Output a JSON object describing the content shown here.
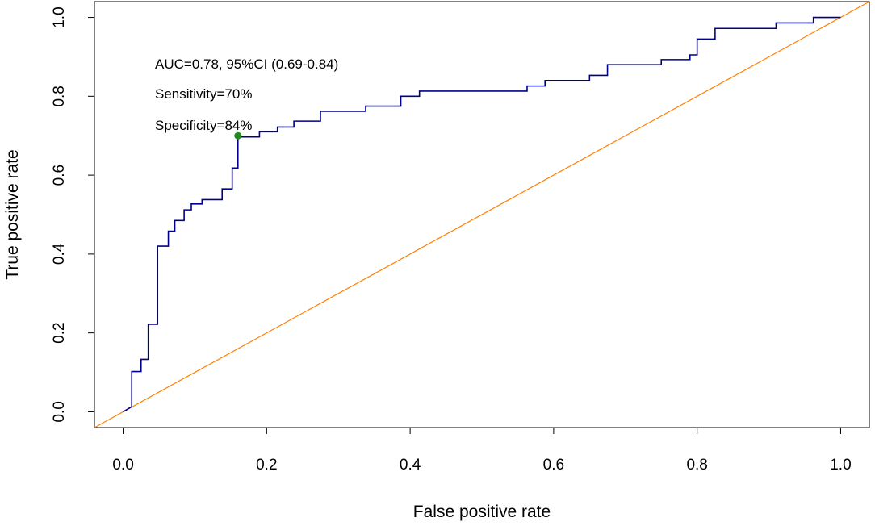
{
  "chart_data": {
    "type": "line",
    "title": "",
    "xlabel": "False positive rate",
    "ylabel": "True positive rate",
    "xlim": [
      -0.04,
      1.04
    ],
    "ylim": [
      -0.04,
      1.04
    ],
    "x_ticks": [
      0.0,
      0.2,
      0.4,
      0.6,
      0.8,
      1.0
    ],
    "x_tick_labels": [
      "0.0",
      "0.2",
      "0.4",
      "0.6",
      "0.8",
      "1.0"
    ],
    "y_ticks": [
      0.0,
      0.2,
      0.4,
      0.6,
      0.8,
      1.0
    ],
    "y_tick_labels": [
      "0.0",
      "0.2",
      "0.4",
      "0.6",
      "0.8",
      "1.0"
    ],
    "grid": false,
    "annotations": [
      "AUC=0.78, 95%CI (0.69-0.84)",
      "Sensitivity=70%",
      "Specificity=84%"
    ],
    "cutoff_point": {
      "x": 0.16,
      "y": 0.7,
      "color": "#228B22"
    },
    "series": [
      {
        "name": "ROC curve",
        "color": "#00008B",
        "step": true,
        "x": [
          0.0,
          0.012,
          0.012,
          0.025,
          0.025,
          0.035,
          0.035,
          0.048,
          0.048,
          0.063,
          0.063,
          0.072,
          0.072,
          0.085,
          0.085,
          0.095,
          0.095,
          0.11,
          0.11,
          0.138,
          0.138,
          0.152,
          0.152,
          0.16,
          0.16,
          0.19,
          0.19,
          0.215,
          0.215,
          0.238,
          0.238,
          0.275,
          0.275,
          0.338,
          0.338,
          0.387,
          0.387,
          0.413,
          0.413,
          0.563,
          0.563,
          0.588,
          0.588,
          0.65,
          0.65,
          0.675,
          0.675,
          0.75,
          0.75,
          0.79,
          0.79,
          0.8,
          0.8,
          0.825,
          0.825,
          0.91,
          0.91,
          0.962,
          0.962,
          1.0
        ],
        "y": [
          0.0,
          0.013,
          0.102,
          0.102,
          0.133,
          0.133,
          0.222,
          0.222,
          0.42,
          0.42,
          0.458,
          0.458,
          0.485,
          0.485,
          0.512,
          0.512,
          0.527,
          0.527,
          0.538,
          0.538,
          0.565,
          0.565,
          0.618,
          0.618,
          0.697,
          0.697,
          0.71,
          0.71,
          0.722,
          0.722,
          0.737,
          0.737,
          0.762,
          0.762,
          0.775,
          0.775,
          0.8,
          0.8,
          0.813,
          0.813,
          0.826,
          0.826,
          0.84,
          0.84,
          0.853,
          0.853,
          0.88,
          0.88,
          0.893,
          0.893,
          0.905,
          0.905,
          0.945,
          0.945,
          0.972,
          0.972,
          0.986,
          0.986,
          1.0,
          1.0
        ]
      },
      {
        "name": "Reference line",
        "color": "#FF7F00",
        "step": false,
        "x": [
          -0.04,
          1.04
        ],
        "y": [
          -0.04,
          1.04
        ]
      }
    ]
  }
}
